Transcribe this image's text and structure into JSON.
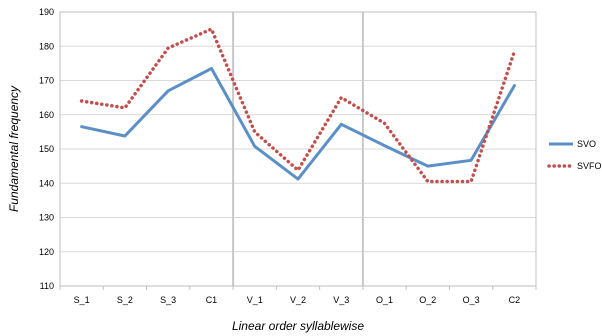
{
  "chart_data": {
    "type": "line",
    "title": "",
    "xlabel": "Linear order syllablewise",
    "ylabel": "Fundamental frequency",
    "ylim": [
      110,
      190
    ],
    "yticks": [
      110,
      120,
      130,
      140,
      150,
      160,
      170,
      180,
      190
    ],
    "grid": true,
    "legend_position": "right",
    "categories": [
      "S_1",
      "S_2",
      "S_3",
      "C1",
      "V_1",
      "V_2",
      "V_3",
      "O_1",
      "O_2",
      "O_3",
      "C2"
    ],
    "separators_after": [
      "C1",
      "V_3"
    ],
    "series": [
      {
        "name": "SVO",
        "color": "#5b8fc7",
        "style": "solid",
        "values": [
          156.5,
          153.8,
          167,
          173.5,
          150.8,
          141.2,
          157.2,
          151,
          145,
          146.7,
          168.5
        ]
      },
      {
        "name": "SVFO",
        "color": "#c0504d",
        "style": "dotted",
        "values": [
          164,
          162,
          179.5,
          185,
          155,
          143.8,
          165,
          157.5,
          140.5,
          140.5,
          178.5
        ]
      }
    ]
  }
}
